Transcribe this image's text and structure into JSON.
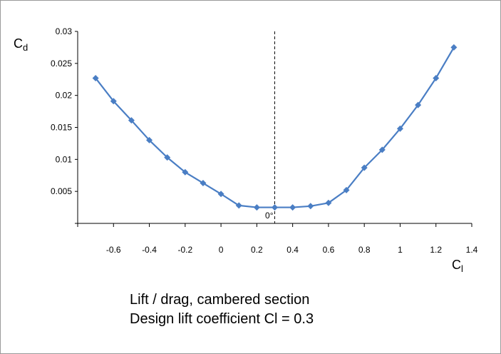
{
  "chart_data": {
    "type": "line",
    "title": "",
    "xlabel": {
      "main": "C",
      "sub": "l"
    },
    "ylabel": {
      "main": "C",
      "sub": "d"
    },
    "xlim": [
      -0.8,
      1.4
    ],
    "ylim": [
      0,
      0.03
    ],
    "x_ticks": [
      "-0.6",
      "-0.4",
      "-0.2",
      "0",
      "0.2",
      "0.4",
      "0.6",
      "0.8",
      "1",
      "1.2",
      "1.4"
    ],
    "x_tick_values": [
      -0.6,
      -0.4,
      -0.2,
      0,
      0.2,
      0.4,
      0.6,
      0.8,
      1,
      1.2,
      1.4
    ],
    "y_ticks": [
      "0.005",
      "0.01",
      "0.015",
      "0.02",
      "0.025",
      "0.03"
    ],
    "y_tick_values": [
      0.005,
      0.01,
      0.015,
      0.02,
      0.025,
      0.03
    ],
    "grid": false,
    "series": [
      {
        "color": "#4a7ec4",
        "marker": "diamond",
        "x": [
          -0.7,
          -0.6,
          -0.5,
          -0.4,
          -0.3,
          -0.2,
          -0.1,
          0.0,
          0.1,
          0.2,
          0.3,
          0.4,
          0.5,
          0.6,
          0.7,
          0.8,
          0.9,
          1.0,
          1.1,
          1.2,
          1.3
        ],
        "y": [
          0.0227,
          0.0191,
          0.0161,
          0.013,
          0.0103,
          0.008,
          0.0063,
          0.0046,
          0.0028,
          0.0025,
          0.0025,
          0.0025,
          0.0027,
          0.0032,
          0.0052,
          0.0087,
          0.0115,
          0.0148,
          0.0185,
          0.0227,
          0.0275
        ]
      }
    ],
    "reference_line": {
      "x": 0.3,
      "style": "dashed",
      "label": "0°"
    },
    "caption": [
      "Lift / drag, cambered section",
      "Design lift coefficient Cl = 0.3"
    ]
  }
}
